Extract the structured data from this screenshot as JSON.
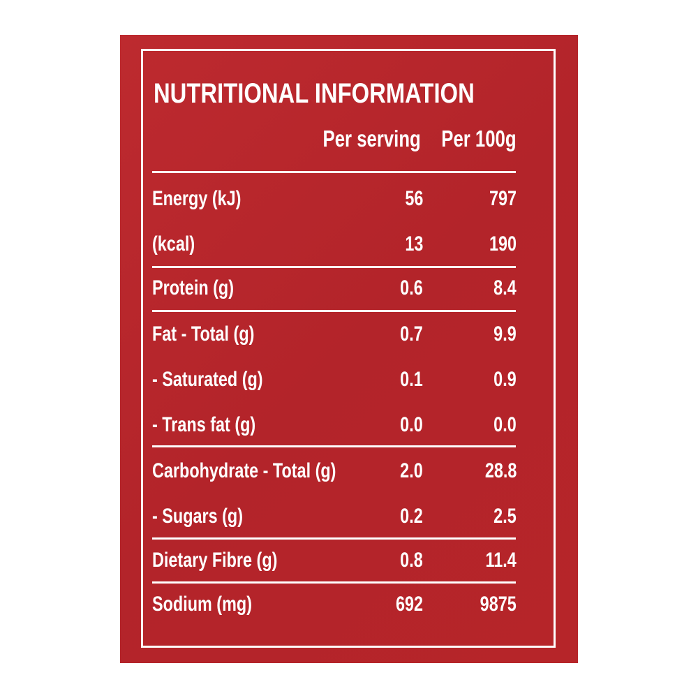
{
  "title": "NUTRITIONAL INFORMATION",
  "columns": {
    "per_serving": "Per serving",
    "per_100g": "Per 100g"
  },
  "rows": [
    {
      "label": "Energy (kJ)",
      "per_serving": "56",
      "per_100g": "797"
    },
    {
      "label": "(kcal)",
      "per_serving": "13",
      "per_100g": "190"
    },
    {
      "label": "Protein (g)",
      "per_serving": "0.6",
      "per_100g": "8.4"
    },
    {
      "label": "Fat - Total (g)",
      "per_serving": "0.7",
      "per_100g": "9.9"
    },
    {
      "label": "- Saturated (g)",
      "per_serving": "0.1",
      "per_100g": "0.9"
    },
    {
      "label": "- Trans fat (g)",
      "per_serving": "0.0",
      "per_100g": "0.0"
    },
    {
      "label": "Carbohydrate - Total (g)",
      "per_serving": "2.0",
      "per_100g": "28.8"
    },
    {
      "label": "- Sugars (g)",
      "per_serving": "0.2",
      "per_100g": "2.5"
    },
    {
      "label": "Dietary Fibre (g)",
      "per_serving": "0.8",
      "per_100g": "11.4"
    },
    {
      "label": "Sodium (mg)",
      "per_serving": "692",
      "per_100g": "9875"
    }
  ],
  "colors": {
    "background": "#b8252b",
    "text": "#ffffff"
  }
}
